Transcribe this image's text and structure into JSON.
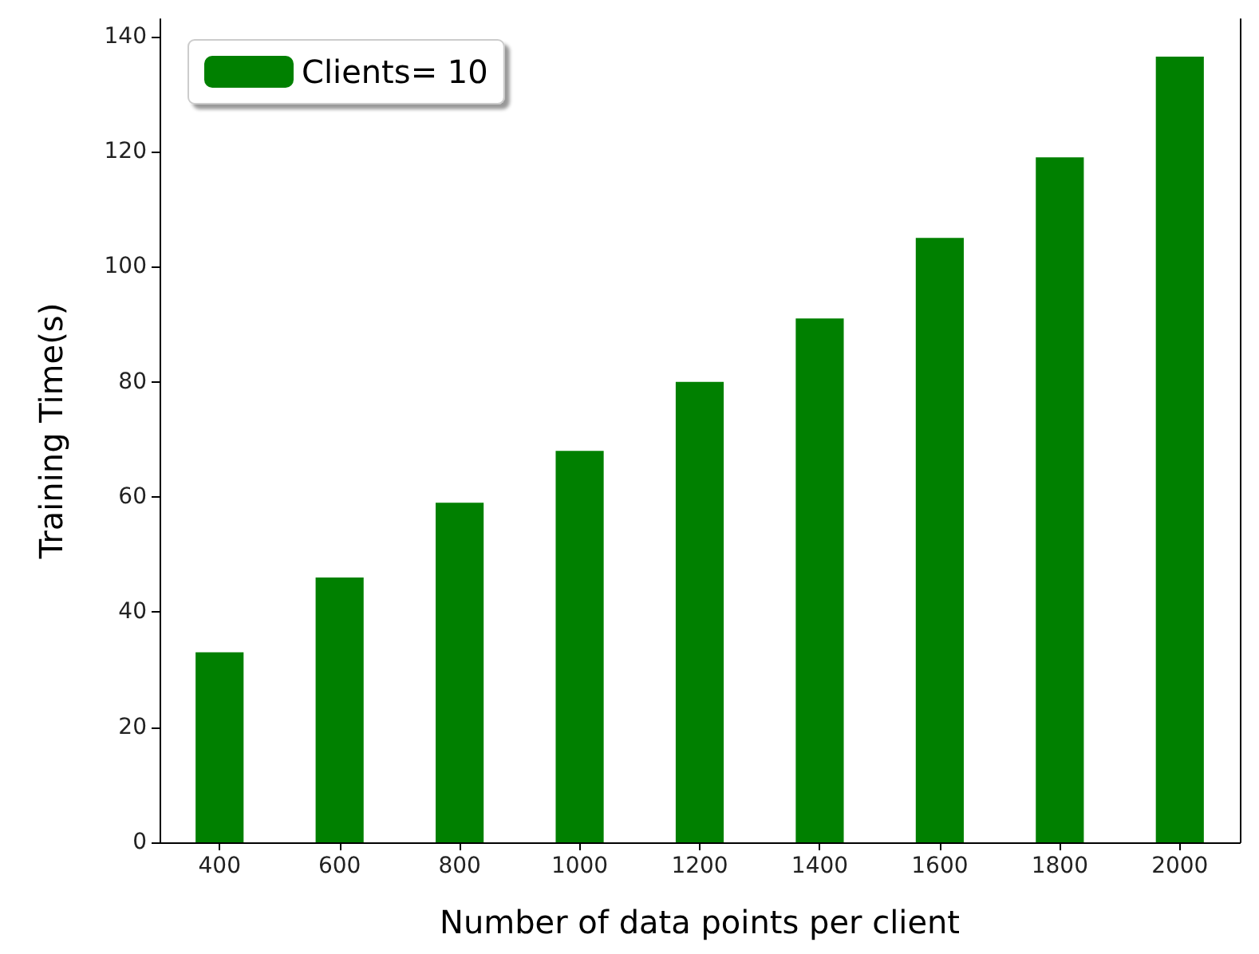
{
  "chart_data": {
    "type": "bar",
    "xlabel": "Number of data points per client",
    "ylabel": "Training Time(s)",
    "categories": [
      "400",
      "600",
      "800",
      "1000",
      "1200",
      "1400",
      "1600",
      "1800",
      "2000"
    ],
    "series": [
      {
        "name": "Clients= 10",
        "color": "#008000",
        "values": [
          33,
          46,
          59,
          68,
          80,
          91,
          105,
          119,
          136.5
        ]
      }
    ],
    "ylim": [
      0,
      143
    ],
    "yticks": [
      0,
      20,
      40,
      60,
      80,
      100,
      120,
      140
    ],
    "grid": false,
    "legend": "top left"
  }
}
